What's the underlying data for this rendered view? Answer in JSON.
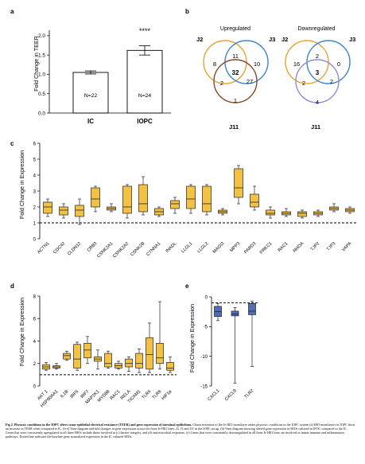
{
  "panels": {
    "a": "a",
    "b": "b",
    "c": "c",
    "d": "d",
    "e": "e"
  },
  "panel_a": {
    "ylabel": "Fold Change in TEER",
    "yticks": [
      "0.0",
      "0.5",
      "1.0",
      "1.5",
      "2.0"
    ],
    "bars": [
      {
        "label": "IC",
        "value": 1.05,
        "err": 0.04,
        "n": "N=22"
      },
      {
        "label": "IOPC",
        "value": 1.62,
        "err": 0.12,
        "n": "N=24"
      }
    ],
    "significance": "****",
    "ylim": [
      0,
      2.1
    ]
  },
  "panel_b": {
    "up": {
      "title": "Upregulated",
      "labels": [
        "J2",
        "J3",
        "J11"
      ],
      "counts": {
        "j2_only": "8",
        "j2_j3": "11",
        "j3_only": "10",
        "all": "32",
        "j2_j11": "2",
        "j3_j11": "27",
        "j11_only": "1"
      }
    },
    "down": {
      "title": "Downregulated",
      "labels": [
        "J2",
        "J3",
        "J11"
      ],
      "counts": {
        "j2_only": "16",
        "j2_j3": "2",
        "j3_only": "0",
        "all": "3",
        "j2_j11": "2",
        "j3_j11": "2",
        "j11_only": "4"
      }
    },
    "colors": {
      "j2": "#e8a23a",
      "j3": "#3c86c9",
      "j11": "#8a4a2a",
      "j11_down": "#8e8ed6"
    }
  },
  "chart_data": [
    {
      "type": "box",
      "panel": "c",
      "ylabel": "Fold Change in Expression",
      "ylim": [
        0,
        6
      ],
      "yticks": [
        "0",
        "1",
        "2",
        "3",
        "4",
        "5",
        "6"
      ],
      "baseline": 1,
      "categories": [
        "ACTN1",
        "CDC42",
        "CLDN12",
        "CRB3",
        "CSNK2A1",
        "CSNK2A2",
        "CSNK2B",
        "CTNNA1",
        "INADL",
        "LLGL1",
        "LLGL2",
        "MAGI3",
        "MPP3",
        "PARD3",
        "PRKC1",
        "RAC1",
        "RHOA",
        "TJP2",
        "TJP3",
        "VAPA"
      ],
      "boxes": [
        [
          1.4,
          1.6,
          2.0,
          2.3,
          2.5
        ],
        [
          1.3,
          1.5,
          1.8,
          2.0,
          2.2
        ],
        [
          0.9,
          1.4,
          1.8,
          2.1,
          2.5
        ],
        [
          1.7,
          2.0,
          2.5,
          3.2,
          3.3
        ],
        [
          1.7,
          1.8,
          1.9,
          2.0,
          2.2
        ],
        [
          1.3,
          1.6,
          2.0,
          3.3,
          3.4
        ],
        [
          1.5,
          1.7,
          2.2,
          3.4,
          3.9
        ],
        [
          1.4,
          1.5,
          1.7,
          1.9,
          2.0
        ],
        [
          1.6,
          1.9,
          2.2,
          2.4,
          2.6
        ],
        [
          1.6,
          1.9,
          2.5,
          3.3,
          3.4
        ],
        [
          1.5,
          1.7,
          2.2,
          3.3,
          3.4
        ],
        [
          1.5,
          1.6,
          1.7,
          1.8,
          1.9
        ],
        [
          2.2,
          2.6,
          3.2,
          4.4,
          4.6
        ],
        [
          1.8,
          2.0,
          2.3,
          2.8,
          3.3
        ],
        [
          1.3,
          1.5,
          1.6,
          1.8,
          2.0
        ],
        [
          1.4,
          1.5,
          1.6,
          1.7,
          1.9
        ],
        [
          1.3,
          1.4,
          1.6,
          1.7,
          1.8
        ],
        [
          1.4,
          1.5,
          1.6,
          1.7,
          1.8
        ],
        [
          1.7,
          1.8,
          1.9,
          2.0,
          2.2
        ],
        [
          1.6,
          1.7,
          1.8,
          1.9,
          2.0
        ]
      ]
    },
    {
      "type": "box",
      "panel": "d",
      "ylabel": "Fold Change in Expression",
      "ylim": [
        0,
        8
      ],
      "yticks": [
        "0",
        "2",
        "4",
        "6",
        "8"
      ],
      "baseline": 1,
      "categories": [
        "AKT 1",
        "HSP90AA1",
        "IL1B",
        "IRF5",
        "IRF7",
        "MAP2K1",
        "MYD88",
        "RAC1",
        "RELA",
        "TICAM1",
        "TLR4",
        "TLR6",
        "HIF1a"
      ],
      "boxes": [
        [
          1.4,
          1.5,
          1.7,
          1.9,
          2.1
        ],
        [
          1.5,
          1.6,
          1.7,
          1.8,
          2.0
        ],
        [
          2.3,
          2.4,
          2.7,
          2.9,
          3.1
        ],
        [
          1.4,
          1.6,
          2.4,
          3.7,
          3.9
        ],
        [
          2.0,
          2.5,
          3.2,
          3.8,
          4.4
        ],
        [
          1.5,
          2.2,
          2.4,
          2.6,
          3.2
        ],
        [
          1.6,
          1.7,
          2.0,
          2.9,
          3.1
        ],
        [
          1.5,
          1.6,
          1.8,
          2.0,
          2.2
        ],
        [
          1.3,
          1.7,
          2.0,
          2.4,
          2.6
        ],
        [
          1.2,
          1.6,
          2.0,
          2.9,
          3.3
        ],
        [
          1.2,
          1.5,
          2.8,
          4.3,
          5.6
        ],
        [
          1.5,
          2.0,
          2.5,
          3.8,
          7.5
        ],
        [
          1.2,
          1.4,
          1.6,
          2.1,
          2.6
        ]
      ]
    },
    {
      "type": "box",
      "panel": "e",
      "ylabel": "Fold Change in Expression",
      "ylim": [
        -15,
        0
      ],
      "yticks": [
        "0",
        "-5",
        "-10",
        "-15"
      ],
      "baseline": -1,
      "categories": [
        "CXCL1",
        "CXCL9",
        "TLR2"
      ],
      "boxes": [
        [
          -4.0,
          -3.3,
          -2.5,
          -1.6,
          -1.1
        ],
        [
          -14.5,
          -3.2,
          -2.9,
          -2.4,
          -1.8
        ],
        [
          -11.7,
          -3.0,
          -2.4,
          -1.1,
          -0.7
        ]
      ]
    }
  ],
  "styles": {
    "box_fill": "#f3c245",
    "box_fill_e": "#4e6fb6",
    "stroke": "#222222"
  },
  "caption": {
    "title": "Fig 2. Physoxic conditions in the IOPC alters trans-epithelial electrical resistance (TEER) and gene expression of intestinal epithelium.",
    "body": "Characterization of the Je HIO monolayer under physoxic conditions in the IOPC system (a) HIO monolayers in IOPC show an increase in TEER when compared to IC. (b-e) Venn diagram and fold changes in gene expression across the three Je HIO lines–J2, J3 and J11 in the IOPC set up. (b) Venn diagram showing altered gene expression in HIOs cultured in IPOC compared to the IC. Genes that were consistently upregulated in all three HIOs include those involved in (c) barrier integrity, and (d) anti-microbial responses. (e) Genes that were consistently downregulated in all three Je HIO lines are involved in innate immune and inflammatory pathways. Dotted line indicates the baseline gene normalized expression in the IC cultured HIOs."
  }
}
